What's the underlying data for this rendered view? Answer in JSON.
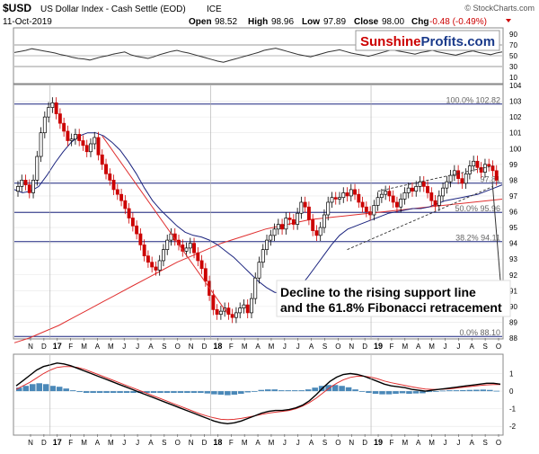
{
  "header": {
    "symbol": "$USD",
    "name": "US Dollar Index - Cash Settle (EOD)",
    "exchange": "ICE",
    "date": "11-Oct-2019",
    "source": "© StockCharts.com",
    "open_label": "Open",
    "open": "98.52",
    "high_label": "High",
    "high": "98.96",
    "low_label": "Low",
    "low": "97.89",
    "close_label": "Close",
    "close": "98.00",
    "chg_label": "Chg",
    "chg": "-0.48 (-0.49%)"
  },
  "logo": {
    "part1": "Sunshine",
    "part2": "Profits.com",
    "color1": "#cc0000",
    "color2": "#1a3a8a"
  },
  "colors": {
    "up_candle": "#000000",
    "down_candle": "#cc0000",
    "red_line": "#e03030",
    "blue_line": "#1a237e",
    "hline": "#1a237e",
    "histogram": "#4a88b8",
    "rsi_line": "#333333",
    "macd": "#000000",
    "signal": "#e03030",
    "grid": "#e6e6e6"
  },
  "x_labels": [
    "N",
    "D",
    "17",
    "F",
    "M",
    "A",
    "M",
    "J",
    "J",
    "A",
    "S",
    "O",
    "N",
    "D",
    "18",
    "F",
    "M",
    "A",
    "M",
    "J",
    "J",
    "A",
    "S",
    "O",
    "N",
    "D",
    "19",
    "F",
    "M",
    "A",
    "M",
    "J",
    "J",
    "A",
    "S",
    "O"
  ],
  "annotation": [
    "Decline to the rising support line",
    "and the 61.8% Fibonacci retracement"
  ],
  "chart_data": [
    {
      "type": "line",
      "name": "RSI",
      "ylim": [
        0,
        100
      ],
      "y_ticks": [
        10,
        30,
        50,
        70,
        90
      ],
      "ref_lines": [
        30,
        50,
        70
      ],
      "values": [
        56,
        58,
        60,
        63,
        61,
        59,
        57,
        55,
        52,
        50,
        47,
        45,
        44,
        42,
        45,
        48,
        50,
        53,
        55,
        57,
        52,
        49,
        47,
        45,
        48,
        52,
        55,
        58,
        60,
        57,
        55,
        52,
        49,
        46,
        43,
        40,
        38,
        41,
        44,
        47,
        50,
        53,
        56,
        60,
        62,
        64,
        61,
        58,
        55,
        52,
        50,
        48,
        51,
        54,
        57,
        59,
        61,
        58,
        55,
        53,
        51,
        49,
        52,
        55,
        58,
        61,
        59,
        57,
        55,
        53,
        56,
        58,
        60,
        57,
        55,
        53,
        51,
        54,
        57,
        59,
        56,
        54,
        52,
        55,
        57
      ]
    },
    {
      "type": "candlestick",
      "name": "$USD",
      "ylim": [
        88,
        104
      ],
      "y_ticks": [
        88,
        89,
        90,
        91,
        92,
        93,
        94,
        95,
        96,
        97,
        98,
        99,
        100,
        101,
        102,
        103,
        104
      ],
      "moving_average_50": [
        97.4,
        97.2,
        97.3,
        97.6,
        98.3,
        99.1,
        99.8,
        100.4,
        100.8,
        101.0,
        101.0,
        100.8,
        100.4,
        99.9,
        99.2,
        98.4,
        97.5,
        96.7,
        96.1,
        95.6,
        95.1,
        94.7,
        94.5,
        94.4,
        94.2,
        93.9,
        93.5,
        93.1,
        92.6,
        92.1,
        91.6,
        91.2,
        90.9,
        90.8,
        90.9,
        91.2,
        91.8,
        92.5,
        93.2,
        93.9,
        94.5,
        94.9,
        95.1,
        95.3,
        95.5,
        95.7,
        95.9,
        96.0,
        96.1,
        96.2,
        96.2,
        96.3,
        96.5,
        96.7,
        96.8,
        96.9,
        97.0,
        97.1,
        97.3,
        97.5,
        97.7
      ],
      "moving_average_200": [
        87.7,
        88.0,
        88.4,
        88.8,
        89.3,
        89.8,
        90.3,
        90.8,
        91.3,
        91.8,
        92.3,
        92.8,
        93.2,
        93.6,
        94.0,
        94.3,
        94.6,
        94.9,
        95.1,
        95.3,
        95.5,
        95.6,
        95.7,
        95.8,
        95.9,
        96.0,
        96.1,
        96.2,
        96.3,
        96.4,
        96.5,
        96.6,
        96.7,
        96.8
      ],
      "closes": [
        97.6,
        98.0,
        97.7,
        97.2,
        98.0,
        99.5,
        101.0,
        102.0,
        102.6,
        102.9,
        102.2,
        101.6,
        101.1,
        100.5,
        100.6,
        100.9,
        100.5,
        100.2,
        99.8,
        100.3,
        100.7,
        99.6,
        99.0,
        98.4,
        98.0,
        97.4,
        97.1,
        96.7,
        96.2,
        95.6,
        95.1,
        94.6,
        93.9,
        93.2,
        92.8,
        92.5,
        92.3,
        92.9,
        93.6,
        94.2,
        94.6,
        94.2,
        93.9,
        93.5,
        93.7,
        94.0,
        93.4,
        92.9,
        92.4,
        91.6,
        90.7,
        89.8,
        89.5,
        89.7,
        89.9,
        89.5,
        89.3,
        89.6,
        89.9,
        90.1,
        89.6,
        90.5,
        91.8,
        92.8,
        93.6,
        94.2,
        94.5,
        94.9,
        95.2,
        94.9,
        95.6,
        95.5,
        95.2,
        95.9,
        96.6,
        96.3,
        95.5,
        94.8,
        94.5,
        95.0,
        95.8,
        96.6,
        96.9,
        96.8,
        96.9,
        97.2,
        97.0,
        97.4,
        97.1,
        96.6,
        96.3,
        96.0,
        95.8,
        96.4,
        96.9,
        97.1,
        97.3,
        97.0,
        96.6,
        96.3,
        96.8,
        97.2,
        97.5,
        97.3,
        97.6,
        97.9,
        97.6,
        97.2,
        96.7,
        96.4,
        97.0,
        97.5,
        97.9,
        98.3,
        98.6,
        98.1,
        97.8,
        98.4,
        98.9,
        99.2,
        98.8,
        98.5,
        99.0,
        98.9,
        98.6,
        98.0
      ],
      "fib_levels": [
        {
          "label": "100.0%",
          "value": 102.82
        },
        {
          "label": "",
          "value": 97.81
        },
        {
          "label": "50.0%",
          "value": 95.96
        },
        {
          "label": "38.2%",
          "value": 94.11
        },
        {
          "label": "0.0%",
          "value": 88.1
        }
      ],
      "fib_value_labels": [
        "102.82",
        "97.81",
        "95.96",
        "94.11",
        "88.10"
      ]
    },
    {
      "type": "line",
      "name": "MACD",
      "ylim": [
        -2.4,
        2.0
      ],
      "y_ticks": [
        -2,
        -1,
        0,
        1
      ],
      "macd": [
        0.3,
        0.6,
        0.9,
        1.2,
        1.4,
        1.5,
        1.6,
        1.55,
        1.45,
        1.3,
        1.15,
        1.0,
        0.85,
        0.7,
        0.55,
        0.4,
        0.25,
        0.1,
        -0.05,
        -0.2,
        -0.35,
        -0.5,
        -0.65,
        -0.8,
        -0.95,
        -1.1,
        -1.25,
        -1.4,
        -1.55,
        -1.7,
        -1.8,
        -1.85,
        -1.8,
        -1.7,
        -1.55,
        -1.4,
        -1.25,
        -1.15,
        -1.1,
        -1.1,
        -1.05,
        -0.95,
        -0.8,
        -0.55,
        -0.2,
        0.2,
        0.55,
        0.8,
        0.95,
        1.0,
        0.95,
        0.85,
        0.7,
        0.55,
        0.4,
        0.3,
        0.25,
        0.2,
        0.1,
        0.05,
        0.0,
        0.05,
        0.1,
        0.15,
        0.2,
        0.25,
        0.3,
        0.35,
        0.4,
        0.45,
        0.45,
        0.4
      ],
      "signal": [
        0.1,
        0.3,
        0.5,
        0.75,
        1.0,
        1.2,
        1.35,
        1.4,
        1.4,
        1.35,
        1.25,
        1.1,
        0.95,
        0.8,
        0.65,
        0.5,
        0.35,
        0.2,
        0.05,
        -0.1,
        -0.25,
        -0.4,
        -0.55,
        -0.7,
        -0.85,
        -1.0,
        -1.15,
        -1.3,
        -1.42,
        -1.52,
        -1.6,
        -1.62,
        -1.6,
        -1.55,
        -1.48,
        -1.4,
        -1.32,
        -1.25,
        -1.2,
        -1.15,
        -1.1,
        -1.0,
        -0.85,
        -0.65,
        -0.4,
        -0.1,
        0.2,
        0.45,
        0.65,
        0.78,
        0.85,
        0.85,
        0.8,
        0.7,
        0.58,
        0.48,
        0.4,
        0.32,
        0.25,
        0.18,
        0.12,
        0.1,
        0.1,
        0.12,
        0.15,
        0.2,
        0.24,
        0.28,
        0.32,
        0.36,
        0.38,
        0.38
      ],
      "histogram": [
        0.2,
        0.3,
        0.4,
        0.45,
        0.4,
        0.3,
        0.25,
        0.15,
        0.05,
        -0.05,
        -0.1,
        -0.1,
        -0.1,
        -0.1,
        -0.1,
        -0.1,
        -0.1,
        -0.1,
        -0.1,
        -0.1,
        -0.1,
        -0.1,
        -0.1,
        -0.1,
        -0.1,
        -0.1,
        -0.1,
        -0.1,
        -0.13,
        -0.18,
        -0.2,
        -0.23,
        -0.2,
        -0.15,
        -0.07,
        0.0,
        0.07,
        0.1,
        0.1,
        0.05,
        0.05,
        0.05,
        0.05,
        0.1,
        0.2,
        0.3,
        0.35,
        0.35,
        0.3,
        0.22,
        0.1,
        0.0,
        -0.1,
        -0.15,
        -0.18,
        -0.18,
        -0.15,
        -0.12,
        -0.15,
        -0.13,
        -0.12,
        -0.05,
        0.0,
        0.03,
        0.05,
        0.05,
        0.06,
        0.07,
        0.08,
        0.09,
        0.07,
        0.02
      ]
    }
  ]
}
